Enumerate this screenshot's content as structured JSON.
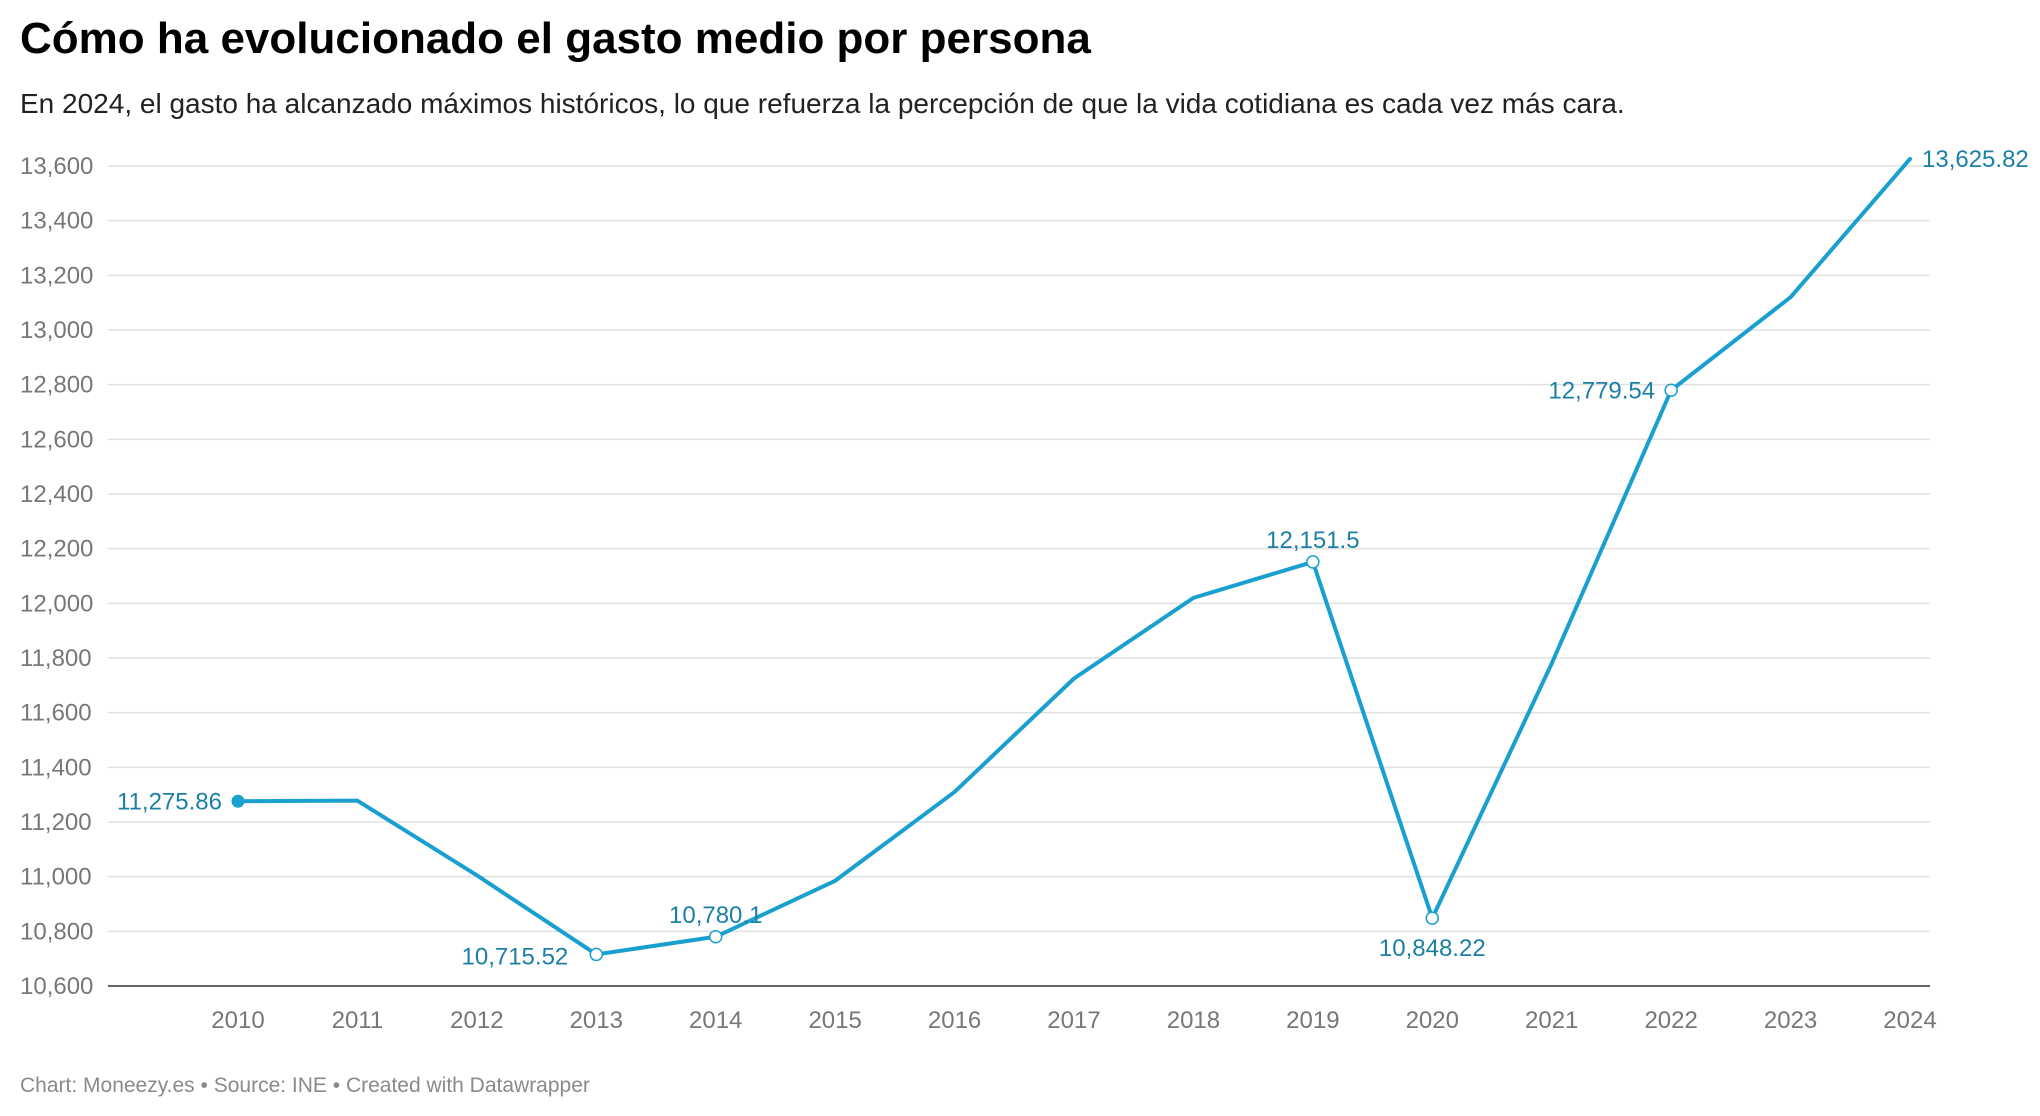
{
  "header": {
    "title": "Cómo ha evolucionado el gasto medio por persona",
    "subtitle": "En 2024, el gasto ha alcanzado máximos históricos, lo que refuerza la percepción de que la vida cotidiana es cada vez más cara."
  },
  "footer": {
    "credit": "Chart: Moneezy.es • Source: INE • Created with Datawrapper"
  },
  "colors": {
    "line": "#1aa0cf",
    "label": "#1b7fa6",
    "grid": "#e0e0e0",
    "tick": "#777777"
  },
  "chart_data": {
    "type": "line",
    "title": "Cómo ha evolucionado el gasto medio por persona",
    "xlabel": "",
    "ylabel": "",
    "ylim": [
      10600,
      13600
    ],
    "y_ticks": [
      10600,
      10800,
      11000,
      11200,
      11400,
      11600,
      11800,
      12000,
      12200,
      12400,
      12600,
      12800,
      13000,
      13200,
      13400,
      13600
    ],
    "y_tick_labels": [
      "10,600",
      "10,800",
      "11,000",
      "11,200",
      "11,400",
      "11,600",
      "11,800",
      "12,000",
      "12,200",
      "12,400",
      "12,600",
      "12,800",
      "13,000",
      "13,200",
      "13,400",
      "13,600"
    ],
    "grid": true,
    "x": [
      "2010",
      "2011",
      "2012",
      "2013",
      "2014",
      "2015",
      "2016",
      "2017",
      "2018",
      "2019",
      "2020",
      "2021",
      "2022",
      "2023",
      "2024"
    ],
    "series": [
      {
        "name": "Gasto medio por persona",
        "values": [
          11275.86,
          11278,
          11005,
          10715.52,
          10780.1,
          10985,
          11310,
          11725,
          12020,
          12151.5,
          10848.22,
          11780,
          12779.54,
          13120,
          13625.82
        ]
      }
    ],
    "annotations": [
      {
        "year": "2010",
        "text": "11,275.86",
        "position": "left",
        "marker": "filled"
      },
      {
        "year": "2013",
        "text": "10,715.52",
        "position": "below-left",
        "marker": "open"
      },
      {
        "year": "2014",
        "text": "10,780.1",
        "position": "above",
        "marker": "open"
      },
      {
        "year": "2019",
        "text": "12,151.5",
        "position": "above",
        "marker": "open"
      },
      {
        "year": "2020",
        "text": "10,848.22",
        "position": "below",
        "marker": "open"
      },
      {
        "year": "2022",
        "text": "12,779.54",
        "position": "left",
        "marker": "open"
      },
      {
        "year": "2024",
        "text": "13,625.82",
        "position": "right",
        "marker": "none"
      }
    ]
  }
}
